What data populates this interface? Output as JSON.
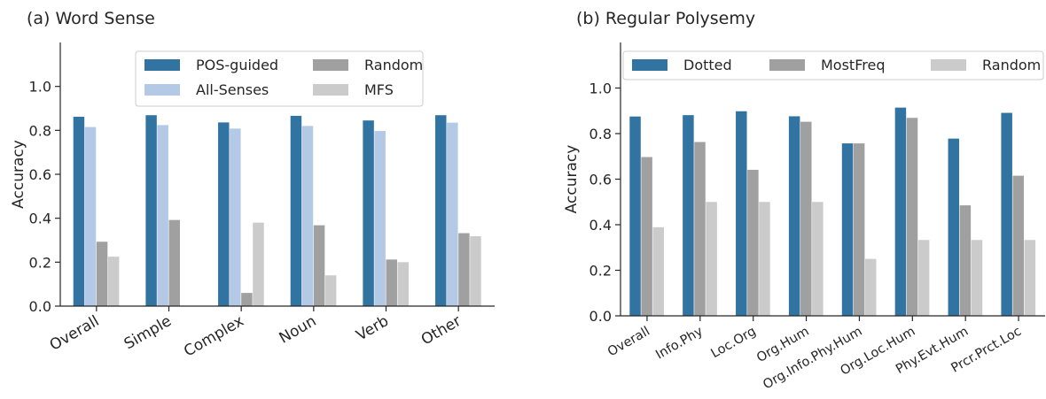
{
  "chart_data": [
    {
      "type": "bar",
      "title": "(a) Word Sense",
      "xlabel": "",
      "ylabel": "Accuracy",
      "ylim": [
        0,
        1.2
      ],
      "yticks": [
        0.0,
        0.2,
        0.4,
        0.6,
        0.8,
        1.0
      ],
      "ytick_labels": [
        "0.0",
        "0.2",
        "0.4",
        "0.6",
        "0.8",
        "1.0"
      ],
      "categories": [
        "Overall",
        "Simple",
        "Complex",
        "Noun",
        "Verb",
        "Other"
      ],
      "legend_placement": "top-center",
      "legend_columns": 2,
      "grid": false,
      "series": [
        {
          "name": "POS-guided",
          "color": "#3274a1",
          "values": [
            0.862,
            0.869,
            0.836,
            0.866,
            0.845,
            0.869
          ]
        },
        {
          "name": "All-Senses",
          "color": "#b3c9e5",
          "values": [
            0.815,
            0.824,
            0.808,
            0.82,
            0.797,
            0.835
          ]
        },
        {
          "name": "Random",
          "color": "#a0a0a0",
          "values": [
            0.293,
            0.392,
            0.06,
            0.368,
            0.212,
            0.332
          ]
        },
        {
          "name": "MFS",
          "color": "#cbcbcb",
          "values": [
            0.225,
            0.0,
            0.38,
            0.14,
            0.2,
            0.318
          ]
        }
      ]
    },
    {
      "type": "bar",
      "title": "(b) Regular Polysemy",
      "xlabel": "",
      "ylabel": "Accuracy",
      "ylim": [
        0,
        1.2
      ],
      "yticks": [
        0.0,
        0.2,
        0.4,
        0.6,
        0.8,
        1.0
      ],
      "ytick_labels": [
        "0.0",
        "0.2",
        "0.4",
        "0.6",
        "0.8",
        "1.0"
      ],
      "categories": [
        "Overall",
        "Info.Phy",
        "Loc.Org",
        "Org.Hum",
        "Org.Info.Phy.Hum",
        "Org.Loc.Hum",
        "Phy.Evt.Hum",
        "Prcr.Prct.Loc"
      ],
      "legend_placement": "top",
      "legend_columns": 3,
      "grid": false,
      "series": [
        {
          "name": "Dotted",
          "color": "#3274a1",
          "values": [
            0.875,
            0.881,
            0.898,
            0.876,
            0.757,
            0.914,
            0.778,
            0.891
          ]
        },
        {
          "name": "MostFreq",
          "color": "#a0a0a0",
          "values": [
            0.697,
            0.763,
            0.641,
            0.852,
            0.757,
            0.869,
            0.485,
            0.615
          ]
        },
        {
          "name": "Random",
          "color": "#cbcbcb",
          "values": [
            0.389,
            0.5,
            0.5,
            0.5,
            0.25,
            0.333,
            0.333,
            0.333
          ]
        }
      ]
    }
  ]
}
